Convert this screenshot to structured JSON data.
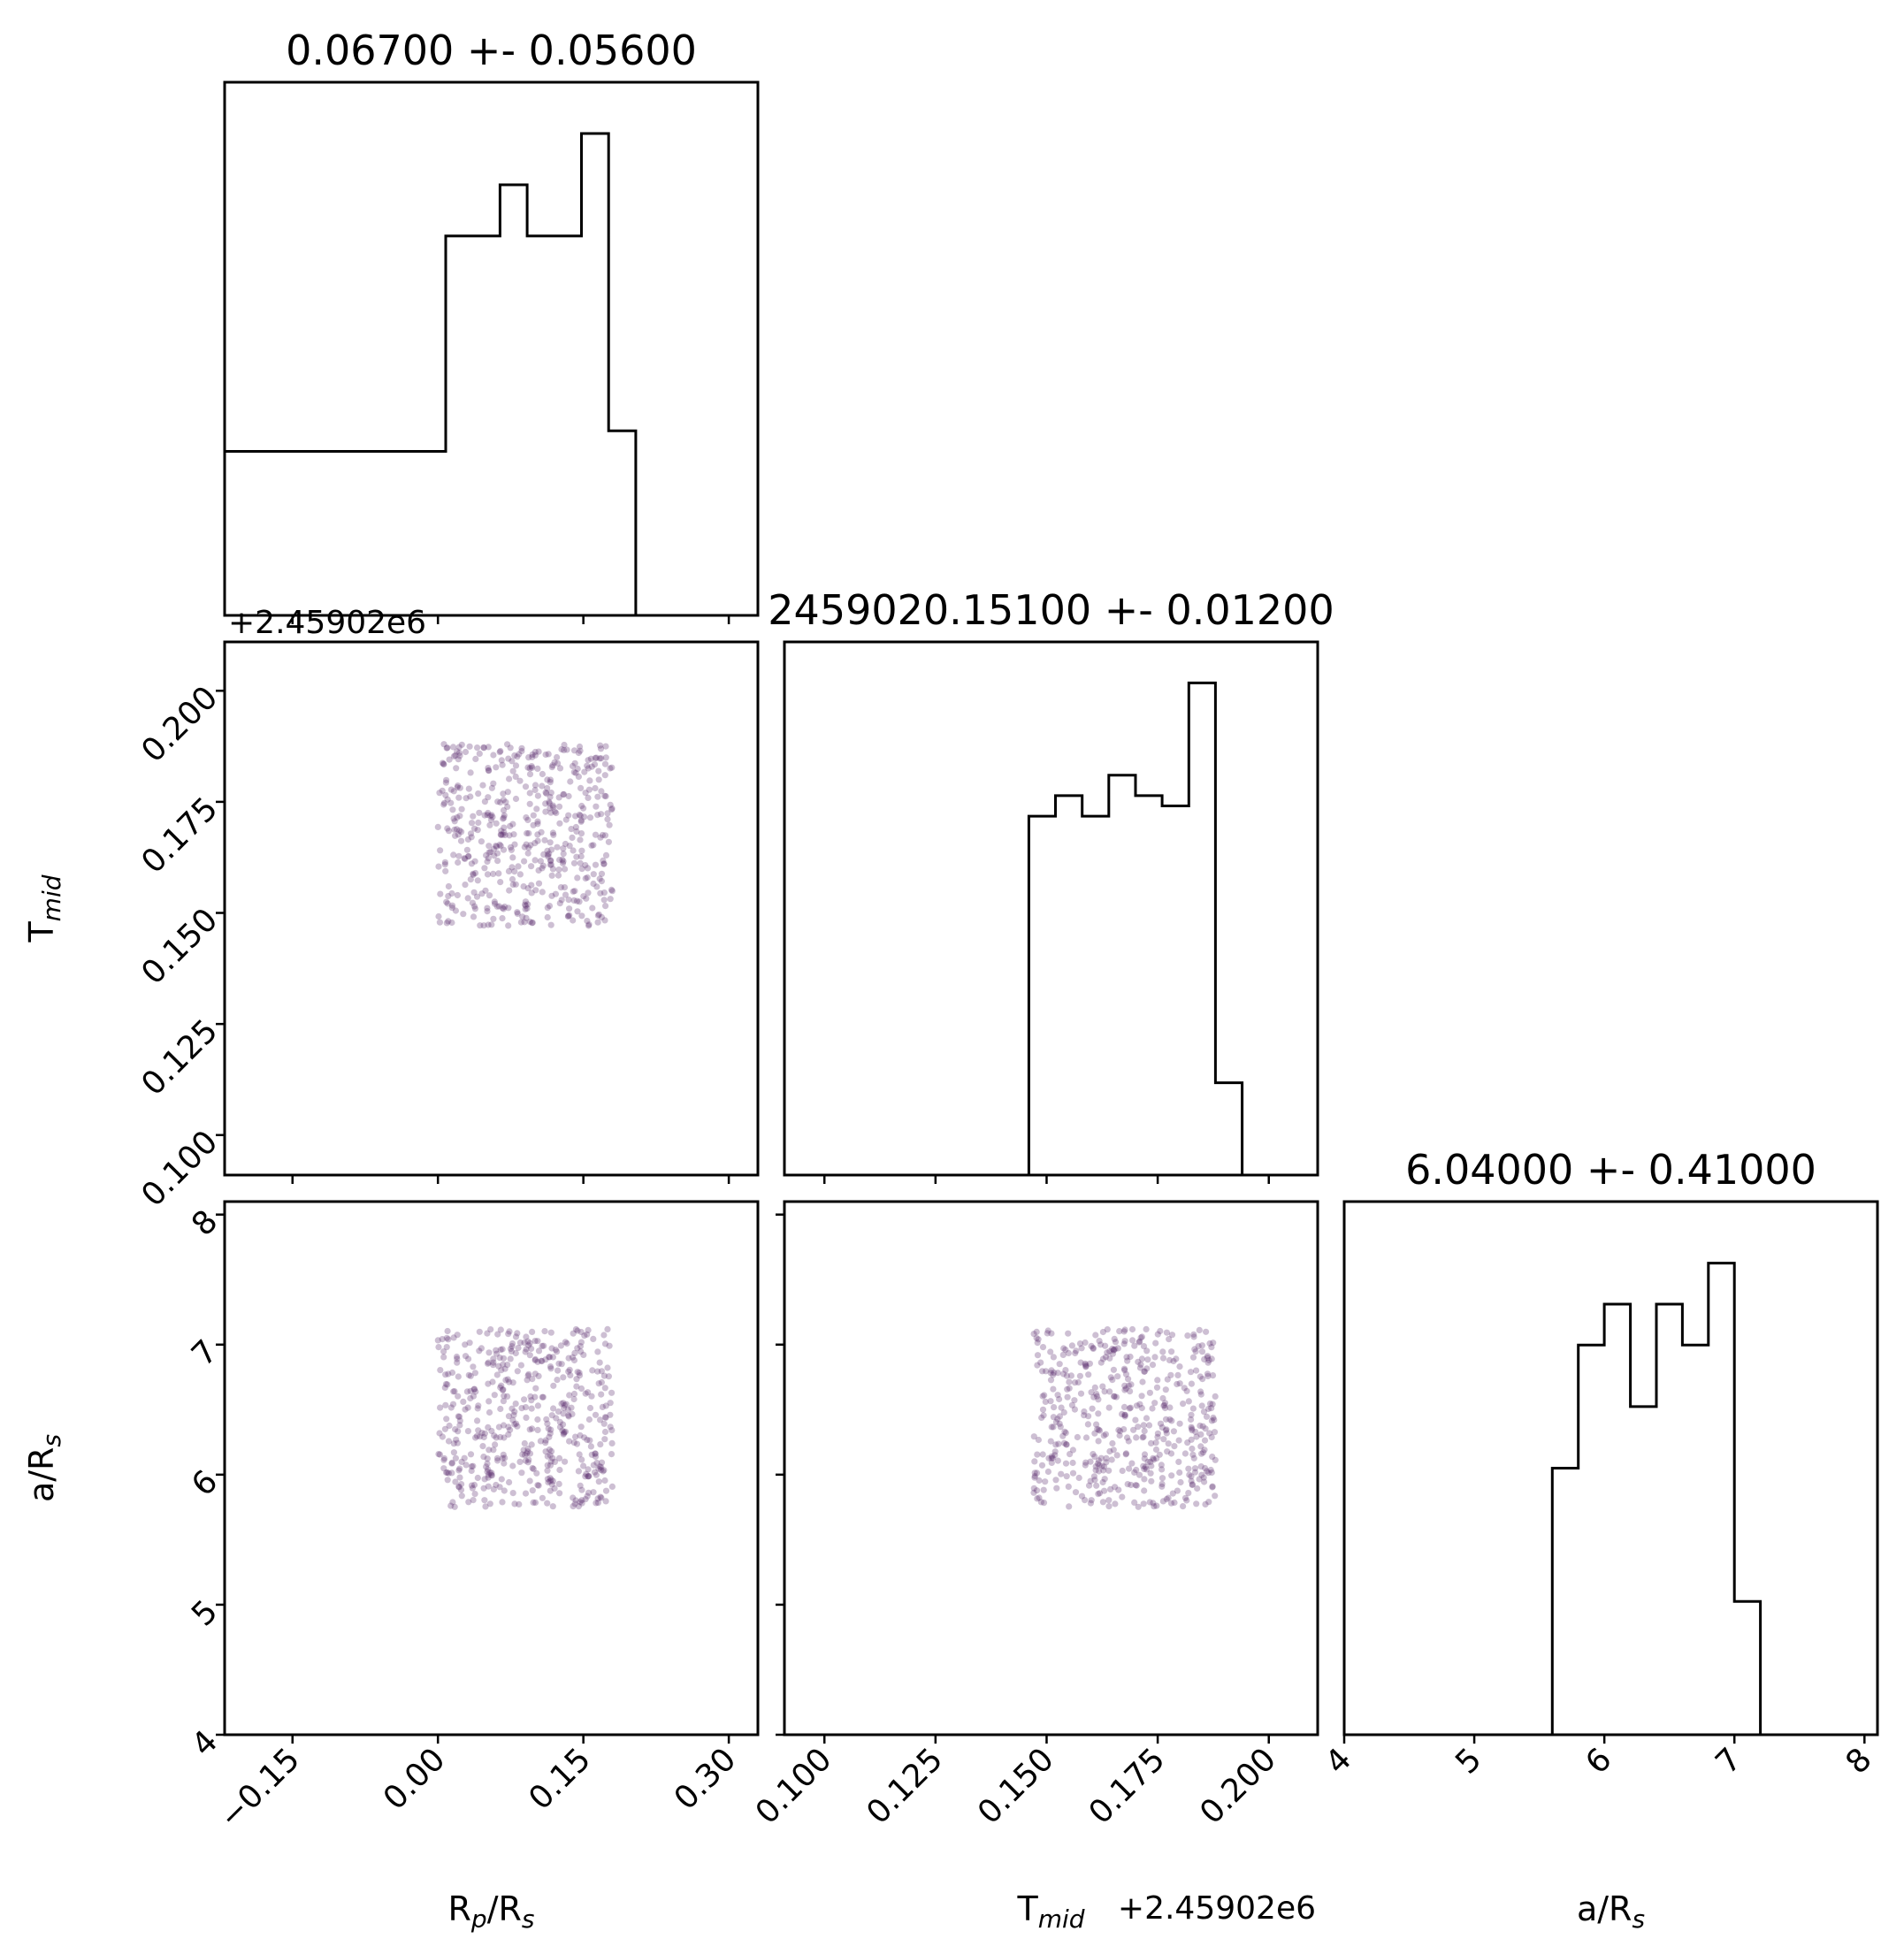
{
  "chart_data": {
    "type": "scatter",
    "variant": "corner-plot",
    "parameters": [
      {
        "key": "rp",
        "label_base": "R",
        "label_sub": "p",
        "label_rest": "/R",
        "label_rest_sub": "s",
        "range": [
          -0.22,
          0.33
        ],
        "ticks": [
          -0.15,
          0.0,
          0.15,
          0.3
        ],
        "tick_labels": [
          "−0.15",
          "0.00",
          "0.15",
          "0.30"
        ],
        "offset_text": ""
      },
      {
        "key": "tmid",
        "label_base": "T",
        "label_sub": "mid",
        "label_rest": "",
        "label_rest_sub": "",
        "range": [
          0.091,
          0.211
        ],
        "ticks": [
          0.1,
          0.125,
          0.15,
          0.175,
          0.2
        ],
        "tick_labels": [
          "0.100",
          "0.125",
          "0.150",
          "0.175",
          "0.200"
        ],
        "offset_text": "+2.45902e6"
      },
      {
        "key": "ars",
        "label_base": "a/R",
        "label_sub": "s",
        "label_rest": "",
        "label_rest_sub": "",
        "range": [
          4.0,
          8.1
        ],
        "ticks": [
          4,
          5,
          6,
          7,
          8
        ],
        "tick_labels": [
          "4",
          "5",
          "6",
          "7",
          "8"
        ],
        "offset_text": ""
      }
    ],
    "titles": [
      "0.06700 +- 0.05600",
      "2459020.15100 +- 0.01200",
      "6.04000 +- 0.41000"
    ],
    "histograms": [
      {
        "parameter": "rp",
        "bin_edges": [
          -0.02,
          0.008,
          0.036,
          0.064,
          0.092,
          0.12,
          0.148,
          0.176,
          0.204,
          0.232,
          0.26,
          0.288,
          0.316,
          0.344
        ],
        "counts": [
          16,
          37,
          37,
          42,
          37,
          37,
          47,
          18,
          0,
          0,
          0,
          0,
          0
        ],
        "ymax": 52
      },
      {
        "parameter": "tmid",
        "bin_edges": [
          0.092,
          0.098,
          0.104,
          0.11,
          0.116,
          0.122,
          0.128,
          0.134,
          0.14,
          0.146,
          0.152,
          0.158,
          0.164,
          0.17,
          0.176,
          0.182,
          0.188,
          0.194,
          0.2,
          0.206,
          0.212
        ],
        "counts": [
          0,
          0,
          0,
          0,
          0,
          0,
          0,
          0,
          0,
          35,
          37,
          35,
          39,
          37,
          36,
          48,
          9,
          0,
          0,
          0
        ],
        "ymax": 52
      },
      {
        "parameter": "ars",
        "bin_edges": [
          4.0,
          4.2,
          4.4,
          4.6,
          4.8,
          5.0,
          5.2,
          5.4,
          5.6,
          5.8,
          6.0,
          6.2,
          6.4,
          6.6,
          6.8,
          7.0,
          7.2,
          7.4,
          7.6,
          7.8,
          8.0
        ],
        "counts": [
          0,
          0,
          0,
          0,
          0,
          0,
          0,
          0,
          26,
          38,
          42,
          32,
          42,
          38,
          46,
          13,
          0,
          0,
          0,
          0
        ],
        "ymax": 52
      }
    ],
    "scatter_color": "#5b2a6e",
    "scatter_alpha": 0.3,
    "samples_description_range": {
      "rp": [
        0.0,
        0.18
      ],
      "tmid": [
        0.147,
        0.188
      ],
      "ars": [
        5.75,
        7.12
      ]
    },
    "n_samples": 500
  }
}
